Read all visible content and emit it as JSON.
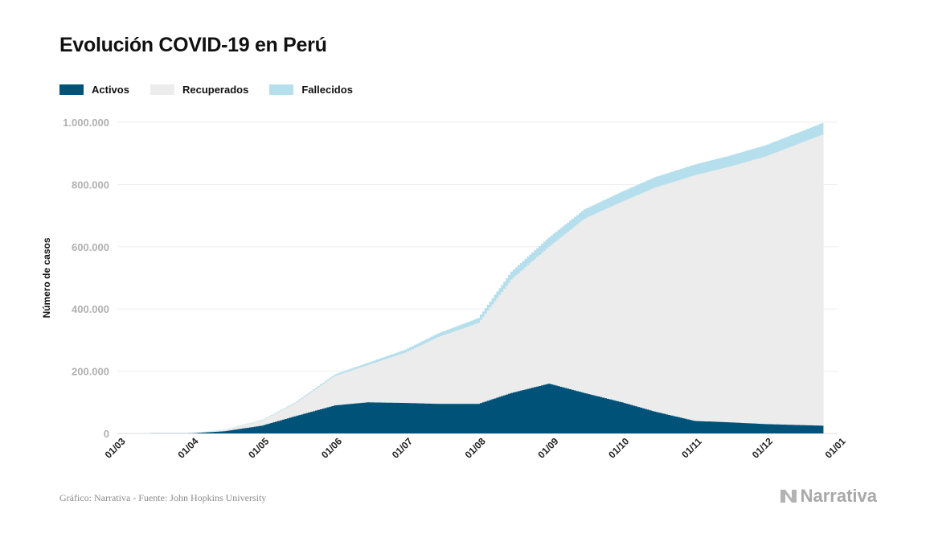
{
  "header": {
    "title": "Evolución COVID-19 en Perú"
  },
  "legend": [
    {
      "label": "Activos",
      "color": "#005279"
    },
    {
      "label": "Recuperados",
      "color": "#ececec"
    },
    {
      "label": "Fallecidos",
      "color": "#b5dfec"
    }
  ],
  "footer": {
    "source": "Gráfico: Narrativa - Fuente: John Hopkins University",
    "brand": "Narrativa"
  },
  "chart_data": {
    "type": "area",
    "stacked": true,
    "ylabel": "Número de casos",
    "ylim": [
      0,
      1000000
    ],
    "yticks": [
      0,
      200000,
      400000,
      600000,
      800000,
      1000000
    ],
    "ytick_labels": [
      "0",
      "200.000",
      "400.000",
      "600.000",
      "800.000",
      "1.000.000"
    ],
    "xticks": [
      "2020-03-01",
      "2020-04-01",
      "2020-05-01",
      "2020-06-01",
      "2020-07-01",
      "2020-08-01",
      "2020-09-01",
      "2020-10-01",
      "2020-11-01",
      "2020-12-01",
      "2021-01-01"
    ],
    "xtick_labels": [
      "01/03",
      "01/04",
      "01/05",
      "01/06",
      "01/07",
      "01/08",
      "01/09",
      "01/10",
      "01/11",
      "01/12",
      "01/01"
    ],
    "grid": "horizontal",
    "legend_position": "top-left",
    "dates": [
      "2020-03-06",
      "2020-04-01",
      "2020-04-15",
      "2020-05-01",
      "2020-05-15",
      "2020-06-01",
      "2020-06-15",
      "2020-07-01",
      "2020-07-15",
      "2020-08-01",
      "2020-08-15",
      "2020-08-31",
      "2020-09-15",
      "2020-10-01",
      "2020-10-15",
      "2020-11-01",
      "2020-11-15",
      "2020-12-01",
      "2020-12-25"
    ],
    "series": [
      {
        "name": "Activos",
        "color": "#005279",
        "values": [
          0,
          500,
          7000,
          25000,
          55000,
          90000,
          100000,
          98000,
          95000,
          95000,
          130000,
          160000,
          130000,
          100000,
          70000,
          40000,
          36000,
          30000,
          25000
        ]
      },
      {
        "name": "Recuperados",
        "color": "#ececec",
        "values": [
          0,
          400,
          5000,
          17000,
          41000,
          95000,
          120000,
          162000,
          215000,
          260000,
          365000,
          440000,
          560000,
          645000,
          720000,
          790000,
          820000,
          860000,
          935000
        ]
      },
      {
        "name": "Fallecidos",
        "color": "#b5dfec",
        "values": [
          0,
          100,
          500,
          1500,
          3000,
          5000,
          7000,
          9500,
          12000,
          16000,
          25000,
          30000,
          30000,
          32000,
          33500,
          34500,
          35000,
          36000,
          37000
        ]
      }
    ]
  }
}
